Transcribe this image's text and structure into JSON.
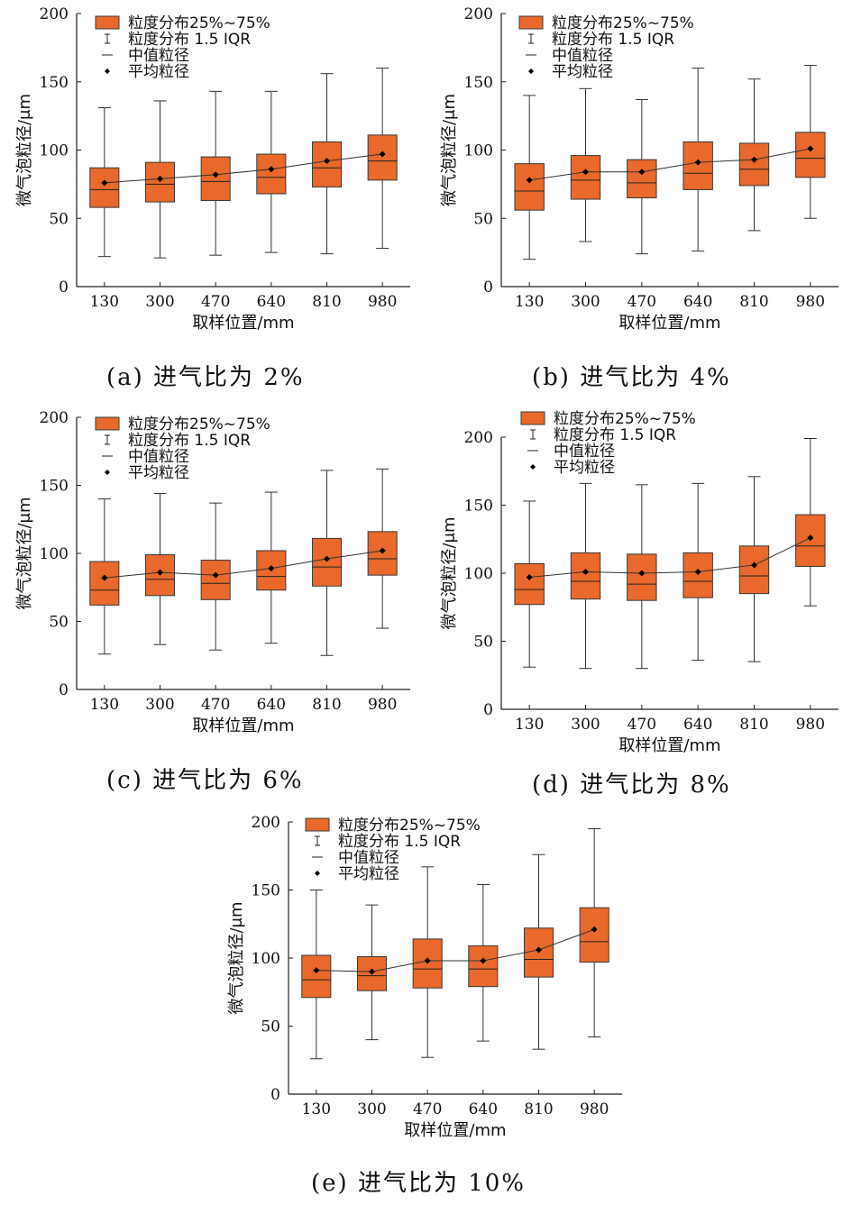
{
  "colors": {
    "box_fill": "#E8692B",
    "box_stroke": "#3a3a3a",
    "line": "#333333",
    "mean_marker": "#000000"
  },
  "legend_labels": {
    "iqr_box": "粒度分布25%~75%",
    "whisker": "粒度分布 1.5 IQR",
    "median": "中值粒径",
    "mean": "平均粒径"
  },
  "captions": [
    "(a) 进气比为 2%",
    "(b) 进气比为 4%",
    "(c) 进气比为 6%",
    "(d) 进气比为 8%",
    "(e) 进气比为 10%"
  ],
  "chart_data": [
    {
      "type": "box",
      "caption": "(a) 进气比为 2%",
      "xlabel": "取样位置/mm",
      "ylabel": "微气泡粒径/μm",
      "ylim": [
        0,
        200
      ],
      "yticks": [
        0,
        50,
        100,
        150,
        200
      ],
      "categories": [
        "130",
        "300",
        "470",
        "640",
        "810",
        "980"
      ],
      "whisker_low": [
        22,
        21,
        23,
        25,
        24,
        28
      ],
      "q1": [
        58,
        62,
        63,
        68,
        73,
        78
      ],
      "median": [
        71,
        75,
        77,
        80,
        87,
        92
      ],
      "q3": [
        87,
        91,
        95,
        97,
        106,
        111
      ],
      "whisker_high": [
        131,
        136,
        143,
        143,
        156,
        160
      ],
      "mean": [
        76,
        79,
        82,
        86,
        92,
        97
      ]
    },
    {
      "type": "box",
      "caption": "(b) 进气比为 4%",
      "xlabel": "取样位置/mm",
      "ylabel": "微气泡粒径/μm",
      "ylim": [
        0,
        200
      ],
      "yticks": [
        0,
        50,
        100,
        150,
        200
      ],
      "categories": [
        "130",
        "300",
        "470",
        "640",
        "810",
        "980"
      ],
      "whisker_low": [
        20,
        33,
        24,
        26,
        41,
        50
      ],
      "q1": [
        56,
        64,
        65,
        71,
        74,
        80
      ],
      "median": [
        70,
        78,
        76,
        83,
        86,
        94
      ],
      "q3": [
        90,
        96,
        93,
        106,
        105,
        113
      ],
      "whisker_high": [
        140,
        145,
        137,
        160,
        152,
        162
      ],
      "mean": [
        78,
        84,
        84,
        91,
        93,
        101
      ]
    },
    {
      "type": "box",
      "caption": "(c) 进气比为 6%",
      "xlabel": "取样位置/mm",
      "ylabel": "微气泡粒径/μm",
      "ylim": [
        0,
        200
      ],
      "yticks": [
        0,
        50,
        100,
        150,
        200
      ],
      "categories": [
        "130",
        "300",
        "470",
        "640",
        "810",
        "980"
      ],
      "whisker_low": [
        26,
        33,
        29,
        34,
        25,
        45
      ],
      "q1": [
        62,
        69,
        66,
        73,
        76,
        84
      ],
      "median": [
        73,
        81,
        78,
        83,
        90,
        96
      ],
      "q3": [
        94,
        99,
        95,
        102,
        111,
        116
      ],
      "whisker_high": [
        140,
        144,
        137,
        145,
        161,
        162
      ],
      "mean": [
        82,
        86,
        84,
        89,
        96,
        102
      ]
    },
    {
      "type": "box",
      "caption": "(d) 进气比为 8%",
      "xlabel": "取样位置/mm",
      "ylabel": "微气泡粒径/μm",
      "ylim": [
        0,
        200
      ],
      "yticks": [
        0,
        50,
        100,
        150,
        200
      ],
      "categories": [
        "130",
        "300",
        "470",
        "640",
        "810",
        "980"
      ],
      "whisker_low": [
        31,
        30,
        30,
        36,
        35,
        76
      ],
      "q1": [
        77,
        81,
        80,
        82,
        85,
        105
      ],
      "median": [
        88,
        94,
        92,
        94,
        98,
        120
      ],
      "q3": [
        107,
        115,
        114,
        115,
        120,
        143
      ],
      "whisker_high": [
        153,
        166,
        165,
        166,
        171,
        199
      ],
      "mean": [
        97,
        101,
        100,
        101,
        106,
        126
      ]
    },
    {
      "type": "box",
      "caption": "(e) 进气比为 10%",
      "xlabel": "取样位置/mm",
      "ylabel": "微气泡粒径/μm",
      "ylim": [
        0,
        200
      ],
      "yticks": [
        0,
        50,
        100,
        150,
        200
      ],
      "categories": [
        "130",
        "300",
        "470",
        "640",
        "810",
        "980"
      ],
      "whisker_low": [
        26,
        40,
        27,
        39,
        33,
        42
      ],
      "q1": [
        71,
        76,
        78,
        79,
        86,
        97
      ],
      "median": [
        84,
        87,
        92,
        92,
        99,
        112
      ],
      "q3": [
        102,
        101,
        114,
        109,
        122,
        137
      ],
      "whisker_high": [
        150,
        139,
        167,
        154,
        176,
        195
      ],
      "mean": [
        91,
        90,
        98,
        98,
        106,
        121
      ]
    }
  ]
}
